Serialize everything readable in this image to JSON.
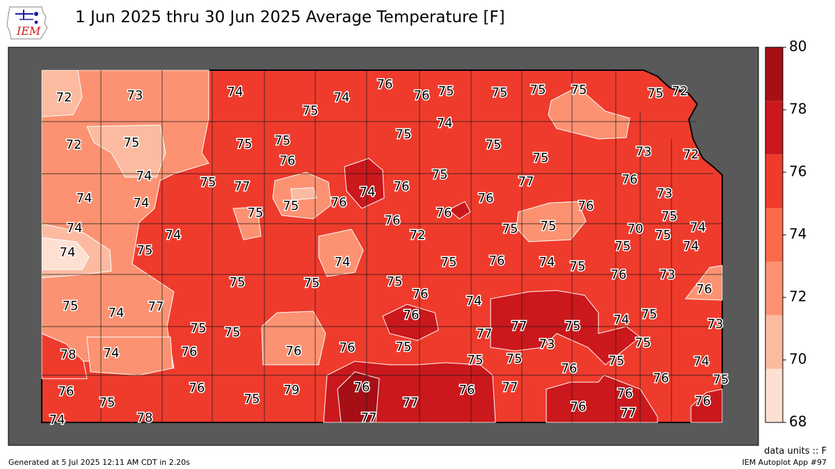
{
  "header": {
    "logo_text": "IEM",
    "title": "1 Jun 2025 thru 30 Jun 2025 Average Temperature [F]"
  },
  "legend": {
    "units": "data units :: F",
    "ticks": [
      "68",
      "70",
      "72",
      "74",
      "76",
      "78",
      "80"
    ],
    "colors": [
      "#fee0d2",
      "#fcbba1",
      "#fc9272",
      "#fb6a4a",
      "#ef3b2c",
      "#cb181d",
      "#a50f15"
    ]
  },
  "map": {
    "background_color": "#595959",
    "labels": [
      "72",
      "73",
      "74",
      "75",
      "74",
      "76",
      "76",
      "75",
      "75",
      "75",
      "75",
      "75",
      "72",
      "72",
      "75",
      "75",
      "75",
      "76",
      "75",
      "74",
      "75",
      "75",
      "72",
      "74",
      "75",
      "77",
      "74",
      "76",
      "75",
      "76",
      "73",
      "74",
      "74",
      "75",
      "75",
      "76",
      "76",
      "77",
      "76",
      "76",
      "73",
      "74",
      "75",
      "75",
      "76",
      "74",
      "72",
      "75",
      "75",
      "70",
      "74",
      "74",
      "75",
      "74",
      "75",
      "76",
      "74",
      "75",
      "74",
      "75",
      "75",
      "75",
      "76",
      "75",
      "76",
      "74",
      "73",
      "75",
      "74",
      "77",
      "76",
      "77",
      "77",
      "75",
      "74",
      "76",
      "75",
      "75",
      "75",
      "73",
      "76",
      "76",
      "75",
      "75",
      "78",
      "75",
      "73",
      "74",
      "76",
      "75",
      "76",
      "76",
      "74",
      "76",
      "75",
      "76",
      "75",
      "79",
      "76",
      "77",
      "76",
      "77",
      "76",
      "75",
      "76",
      "75",
      "74",
      "78",
      "77",
      "77",
      "76"
    ]
  },
  "footer": {
    "generated": "Generated at 5 Jul 2025 12:11 AM CDT in 2.20s",
    "app": "IEM Autoplot App #97"
  }
}
